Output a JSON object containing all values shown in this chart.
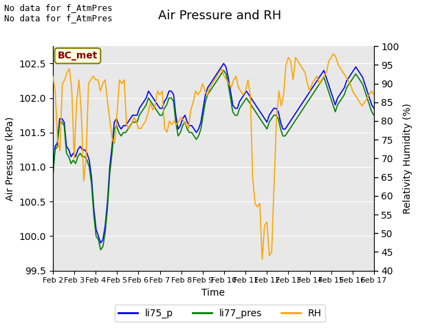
{
  "title": "Air Pressure and RH",
  "ylabel_left": "Air Pressure (kPa)",
  "ylabel_right": "Relativity Humidity (%)",
  "xlabel": "Time",
  "text_top_left": "No data for f_AtmPres\nNo data for f_AtmPres",
  "bc_met_label": "BC_met",
  "ylim_left": [
    99.5,
    102.75
  ],
  "ylim_right": [
    40,
    100
  ],
  "yticks_left": [
    99.5,
    100.0,
    100.5,
    101.0,
    101.5,
    102.0,
    102.5
  ],
  "yticks_right": [
    40,
    45,
    50,
    55,
    60,
    65,
    70,
    75,
    80,
    85,
    90,
    95,
    100
  ],
  "xtick_labels": [
    "Feb 2",
    "Feb 3",
    "Feb 4",
    "Feb 5",
    "Feb 6",
    "Feb 7",
    "Feb 8",
    "Feb 9",
    "Feb 10",
    "Feb 11",
    "Feb 12",
    "Feb 13",
    "Feb 14",
    "Feb 15",
    "Feb 16",
    "Feb 17"
  ],
  "legend_labels": [
    "li75_p",
    "li77_pres",
    "RH"
  ],
  "legend_colors": [
    "blue",
    "green",
    "orange"
  ],
  "line_colors": [
    "blue",
    "green",
    "orange"
  ],
  "background_color": "#e8e8e8",
  "figure_background": "#ffffff",
  "li75_p": [
    100.9,
    101.3,
    101.35,
    101.7,
    101.7,
    101.65,
    101.3,
    101.25,
    101.15,
    101.2,
    101.15,
    101.25,
    101.3,
    101.25,
    101.25,
    101.2,
    101.1,
    100.85,
    100.4,
    100.1,
    100.0,
    99.9,
    99.95,
    100.15,
    100.5,
    101.0,
    101.3,
    101.65,
    101.7,
    101.6,
    101.55,
    101.6,
    101.6,
    101.65,
    101.7,
    101.75,
    101.75,
    101.75,
    101.85,
    101.9,
    101.95,
    102.0,
    102.1,
    102.05,
    102.0,
    101.95,
    101.9,
    101.85,
    101.85,
    101.95,
    102.0,
    102.1,
    102.1,
    102.05,
    101.75,
    101.55,
    101.6,
    101.7,
    101.75,
    101.65,
    101.6,
    101.6,
    101.55,
    101.5,
    101.55,
    101.65,
    101.85,
    102.05,
    102.15,
    102.2,
    102.25,
    102.3,
    102.35,
    102.4,
    102.45,
    102.5,
    102.45,
    102.3,
    102.1,
    101.9,
    101.85,
    101.85,
    101.95,
    102.0,
    102.05,
    102.1,
    102.05,
    102.0,
    101.95,
    101.9,
    101.85,
    101.8,
    101.75,
    101.7,
    101.65,
    101.75,
    101.8,
    101.85,
    101.85,
    101.8,
    101.65,
    101.55,
    101.55,
    101.6,
    101.65,
    101.7,
    101.75,
    101.8,
    101.85,
    101.9,
    101.95,
    102.0,
    102.05,
    102.1,
    102.15,
    102.2,
    102.25,
    102.3,
    102.35,
    102.4,
    102.3,
    102.2,
    102.1,
    102.0,
    101.9,
    102.0,
    102.05,
    102.1,
    102.15,
    102.25,
    102.3,
    102.35,
    102.4,
    102.45,
    102.4,
    102.35,
    102.3,
    102.2,
    102.1,
    102.0,
    101.9,
    101.85
  ],
  "li77_pres": [
    100.85,
    101.25,
    101.3,
    101.65,
    101.65,
    101.6,
    101.2,
    101.15,
    101.05,
    101.1,
    101.05,
    101.15,
    101.2,
    101.15,
    101.15,
    101.1,
    101.0,
    100.75,
    100.3,
    100.0,
    99.95,
    99.8,
    99.85,
    100.05,
    100.4,
    100.9,
    101.2,
    101.55,
    101.6,
    101.5,
    101.45,
    101.5,
    101.5,
    101.55,
    101.6,
    101.65,
    101.65,
    101.65,
    101.75,
    101.8,
    101.85,
    101.9,
    102.0,
    101.95,
    101.9,
    101.85,
    101.8,
    101.75,
    101.75,
    101.85,
    101.9,
    102.0,
    102.0,
    101.95,
    101.65,
    101.45,
    101.5,
    101.6,
    101.65,
    101.55,
    101.5,
    101.5,
    101.45,
    101.4,
    101.45,
    101.55,
    101.75,
    101.95,
    102.05,
    102.1,
    102.15,
    102.2,
    102.25,
    102.3,
    102.35,
    102.4,
    102.35,
    102.2,
    102.0,
    101.8,
    101.75,
    101.75,
    101.85,
    101.9,
    101.95,
    102.0,
    101.95,
    101.9,
    101.85,
    101.8,
    101.75,
    101.7,
    101.65,
    101.6,
    101.55,
    101.65,
    101.7,
    101.75,
    101.75,
    101.7,
    101.55,
    101.45,
    101.45,
    101.5,
    101.55,
    101.6,
    101.65,
    101.7,
    101.75,
    101.8,
    101.85,
    101.9,
    101.95,
    102.0,
    102.05,
    102.1,
    102.15,
    102.2,
    102.25,
    102.3,
    102.2,
    102.1,
    102.0,
    101.9,
    101.8,
    101.9,
    101.95,
    102.0,
    102.05,
    102.15,
    102.2,
    102.25,
    102.3,
    102.35,
    102.3,
    102.25,
    102.2,
    102.1,
    102.0,
    101.9,
    101.8,
    101.75
  ],
  "RH_raw": [
    92,
    88,
    75,
    72,
    90,
    91,
    93,
    94,
    88,
    70,
    85,
    91,
    82,
    64,
    70,
    90,
    91,
    92,
    91,
    91,
    88,
    90,
    91,
    85,
    80,
    75,
    74,
    82,
    91,
    90,
    91,
    79,
    78,
    79,
    81,
    80,
    78,
    78,
    79,
    80,
    82,
    85,
    83,
    84,
    88,
    87,
    88,
    78,
    77,
    80,
    79,
    80,
    79,
    80,
    81,
    80,
    79,
    78,
    83,
    85,
    88,
    87,
    88,
    90,
    88,
    87,
    89,
    90,
    91,
    92,
    93,
    94,
    92,
    91,
    90,
    89,
    91,
    92,
    89,
    88,
    87,
    88,
    91,
    87,
    65,
    58,
    57,
    58,
    43,
    52,
    53,
    44,
    45,
    63,
    80,
    88,
    84,
    87,
    95,
    97,
    96,
    91,
    97,
    96,
    95,
    94,
    93,
    90,
    88,
    90,
    91,
    92,
    90,
    91,
    92,
    93,
    96,
    97,
    98,
    97,
    95,
    94,
    93,
    92,
    91,
    90,
    88,
    87,
    86,
    85,
    84,
    85,
    86,
    87,
    88,
    87
  ]
}
